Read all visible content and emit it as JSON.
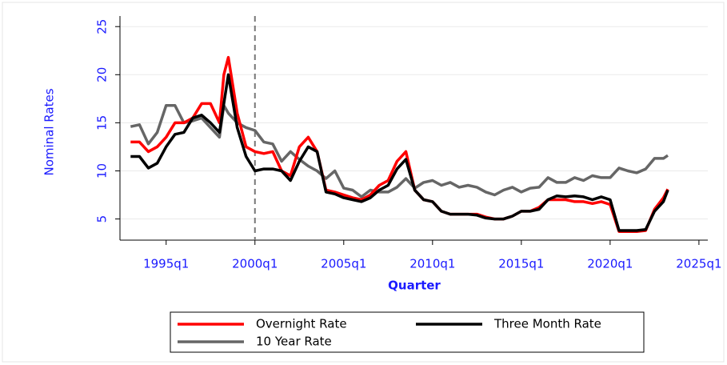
{
  "chart_data": {
    "type": "line",
    "y_label": "Nominal Rates",
    "x_label": "Quarter",
    "x": [
      1993,
      1993.5,
      1994,
      1994.5,
      1995,
      1995.5,
      1996,
      1996.5,
      1997,
      1997.5,
      1998,
      1998.25,
      1998.5,
      1999,
      1999.5,
      2000,
      2000.5,
      2001,
      2001.5,
      2002,
      2002.5,
      2003,
      2003.5,
      2004,
      2004.5,
      2005,
      2005.5,
      2006,
      2006.5,
      2007,
      2007.5,
      2008,
      2008.5,
      2009,
      2009.5,
      2010,
      2010.5,
      2011,
      2011.5,
      2012,
      2012.5,
      2013,
      2013.5,
      2014,
      2014.5,
      2015,
      2015.5,
      2016,
      2016.5,
      2017,
      2017.5,
      2018,
      2018.5,
      2019,
      2019.5,
      2020,
      2020.5,
      2021,
      2021.5,
      2022,
      2022.5,
      2023,
      2023.25
    ],
    "series": [
      {
        "name": "Overnight Rate",
        "color": "#ff0000",
        "values": [
          13,
          13,
          12,
          12.5,
          13.5,
          15,
          15,
          15.5,
          17,
          17,
          15,
          20,
          21.8,
          16,
          12.5,
          12,
          11.8,
          12,
          10,
          9.5,
          12.5,
          13.5,
          12,
          8,
          7.8,
          7.5,
          7.2,
          7,
          7.5,
          8.5,
          9,
          11,
          12,
          8,
          7,
          6.8,
          5.8,
          5.5,
          5.5,
          5.5,
          5.5,
          5.2,
          5,
          5,
          5.3,
          5.8,
          5.8,
          6.2,
          7,
          7,
          7,
          6.8,
          6.8,
          6.6,
          6.8,
          6.5,
          3.7,
          3.7,
          3.7,
          3.8,
          6,
          7.2,
          8.1
        ]
      },
      {
        "name": "Three Month Rate",
        "color": "#000000",
        "values": [
          11.5,
          11.5,
          10.3,
          10.8,
          12.5,
          13.8,
          14,
          15.5,
          15.8,
          15,
          14,
          17,
          20,
          14.5,
          11.5,
          10,
          10.2,
          10.2,
          10,
          9,
          11,
          12.5,
          12,
          7.8,
          7.6,
          7.2,
          7,
          6.8,
          7.2,
          8,
          8.5,
          10.2,
          11.2,
          8,
          7,
          6.8,
          5.8,
          5.5,
          5.5,
          5.5,
          5.4,
          5.1,
          5,
          5,
          5.3,
          5.8,
          5.8,
          6,
          7,
          7.4,
          7.3,
          7.4,
          7.3,
          7,
          7.3,
          7,
          3.8,
          3.8,
          3.8,
          3.9,
          5.8,
          6.8,
          8
        ]
      },
      {
        "name": "10 Year Rate",
        "color": "#666666",
        "values": [
          14.6,
          14.8,
          12.8,
          14,
          16.8,
          16.8,
          15,
          15.2,
          15.5,
          14.5,
          13.5,
          16.8,
          16,
          15,
          14.5,
          14.2,
          13,
          12.8,
          11,
          12,
          11.2,
          10.5,
          10,
          9.2,
          10,
          8.2,
          8,
          7.3,
          8,
          7.8,
          7.8,
          8.3,
          9.2,
          8.2,
          8.8,
          9,
          8.5,
          8.8,
          8.3,
          8.5,
          8.3,
          7.8,
          7.5,
          8,
          8.3,
          7.8,
          8.2,
          8.3,
          9.3,
          8.8,
          8.8,
          9.3,
          9,
          9.5,
          9.3,
          9.3,
          10.3,
          10,
          9.8,
          10.2,
          11.3,
          11.3,
          11.6
        ]
      }
    ],
    "xlim": [
      1992.4,
      2025.5
    ],
    "xticks": [
      {
        "value": 1995,
        "label": "1995q1"
      },
      {
        "value": 2000,
        "label": "2000q1"
      },
      {
        "value": 2005,
        "label": "2005q1"
      },
      {
        "value": 2010,
        "label": "2010q1"
      },
      {
        "value": 2015,
        "label": "2015q1"
      },
      {
        "value": 2020,
        "label": "2020q1"
      },
      {
        "value": 2025,
        "label": "2025q1"
      }
    ],
    "ylim": [
      2.8,
      26.1
    ],
    "yticks": [
      5,
      10,
      15,
      20,
      25
    ],
    "grid": true,
    "vline": 2000,
    "legend": "bottom"
  }
}
